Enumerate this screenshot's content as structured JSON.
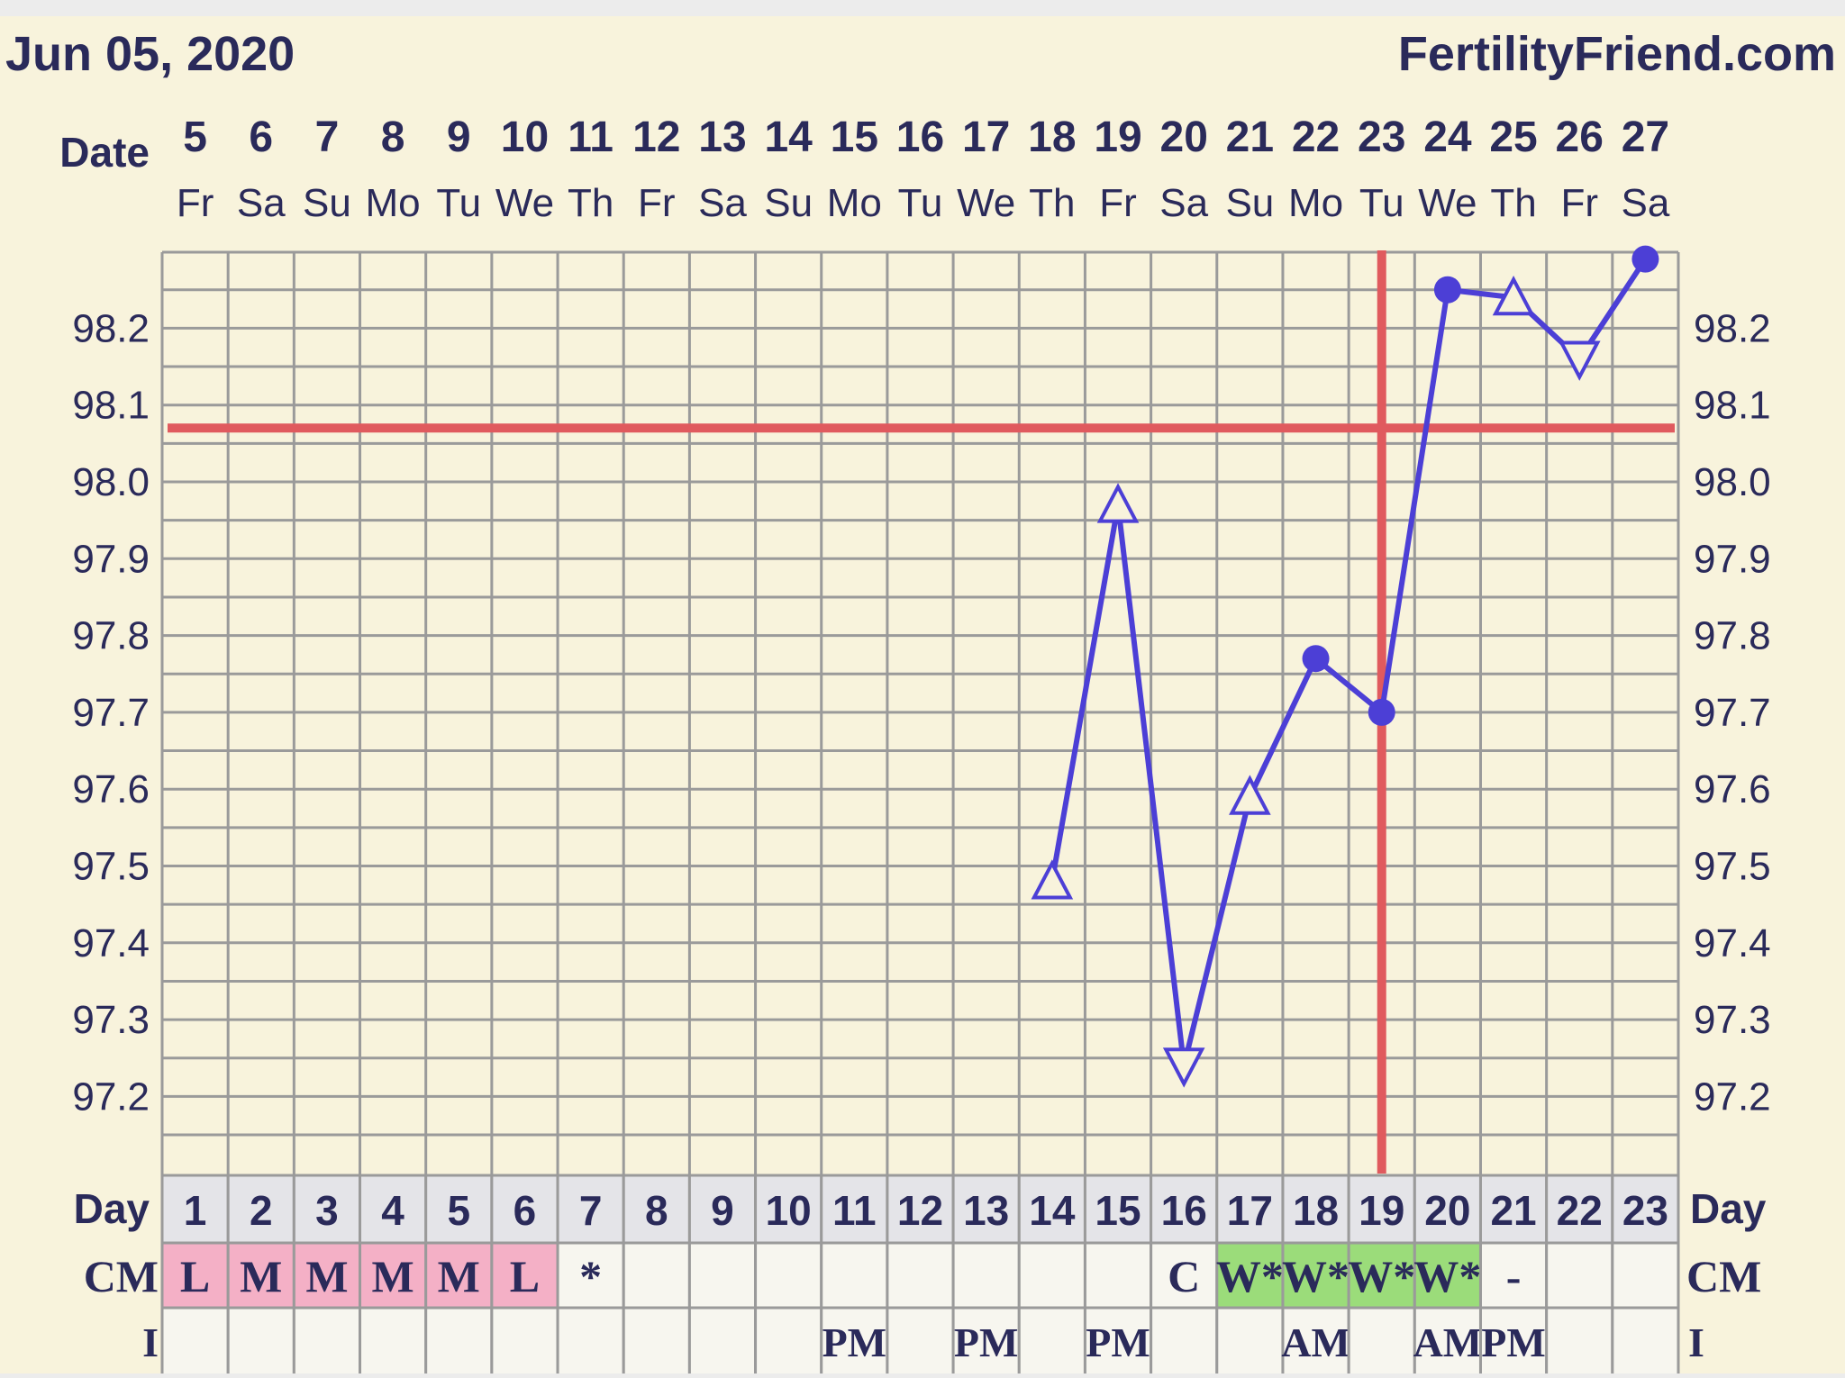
{
  "header": {
    "date": "Jun 05, 2020",
    "site": "FertilityFriend.com"
  },
  "labels": {
    "date_row": "Date",
    "day_row": "Day",
    "cm_row": "CM",
    "i_row": "I"
  },
  "colors": {
    "background": "#f8f3dc",
    "grid": "#9a9a9a",
    "line": "#4c3fd6",
    "coverline": "#e05a5e",
    "menstruation": "#f4b0c6",
    "fertile_cm": "#9bdc7a",
    "day_row_bg": "#e4e4e8",
    "cell_bg": "#f7f6ef"
  },
  "chart_data": {
    "type": "line",
    "title": "",
    "xlabel": "",
    "ylabel": "",
    "ylim": [
      97.1,
      98.3
    ],
    "yticks": [
      "98.2",
      "98.1",
      "98.0",
      "97.9",
      "97.8",
      "97.7",
      "97.6",
      "97.5",
      "97.4",
      "97.3",
      "97.2"
    ],
    "dates": [
      "5",
      "6",
      "7",
      "8",
      "9",
      "10",
      "11",
      "12",
      "13",
      "14",
      "15",
      "16",
      "17",
      "18",
      "19",
      "20",
      "21",
      "22",
      "23",
      "24",
      "25",
      "26",
      "27"
    ],
    "weekdays": [
      "Fr",
      "Sa",
      "Su",
      "Mo",
      "Tu",
      "We",
      "Th",
      "Fr",
      "Sa",
      "Su",
      "Mo",
      "Tu",
      "We",
      "Th",
      "Fr",
      "Sa",
      "Su",
      "Mo",
      "Tu",
      "We",
      "Th",
      "Fr",
      "Sa"
    ],
    "cycle_days": [
      "1",
      "2",
      "3",
      "4",
      "5",
      "6",
      "7",
      "8",
      "9",
      "10",
      "11",
      "12",
      "13",
      "14",
      "15",
      "16",
      "17",
      "18",
      "19",
      "20",
      "21",
      "22",
      "23"
    ],
    "temperatures": [
      {
        "day": 14,
        "temp": 97.48,
        "marker": "triangle-up"
      },
      {
        "day": 15,
        "temp": 97.97,
        "marker": "triangle-up"
      },
      {
        "day": 16,
        "temp": 97.24,
        "marker": "triangle-down"
      },
      {
        "day": 17,
        "temp": 97.59,
        "marker": "triangle-up"
      },
      {
        "day": 18,
        "temp": 97.77,
        "marker": "circle"
      },
      {
        "day": 19,
        "temp": 97.7,
        "marker": "circle"
      },
      {
        "day": 20,
        "temp": 98.25,
        "marker": "circle"
      },
      {
        "day": 21,
        "temp": 98.24,
        "marker": "triangle-up"
      },
      {
        "day": 22,
        "temp": 98.16,
        "marker": "triangle-down"
      },
      {
        "day": 23,
        "temp": 98.29,
        "marker": "circle"
      }
    ],
    "coverline": 98.07,
    "ovulation_day": 19,
    "cervical_mucus": [
      "L",
      "M",
      "M",
      "M",
      "M",
      "L",
      "*",
      "",
      "",
      "",
      "",
      "",
      "",
      "",
      "",
      "C",
      "W*",
      "W*",
      "W*",
      "W*",
      "-",
      "",
      ""
    ],
    "cm_highlight": [
      "pink",
      "pink",
      "pink",
      "pink",
      "pink",
      "pink",
      "",
      "",
      "",
      "",
      "",
      "",
      "",
      "",
      "",
      "",
      "green",
      "green",
      "green",
      "green",
      "",
      "",
      ""
    ],
    "intercourse": [
      "",
      "",
      "",
      "",
      "",
      "",
      "",
      "",
      "",
      "",
      "PM",
      "",
      "PM",
      "",
      "PM",
      "",
      "",
      "AM",
      "",
      "AM",
      "PM",
      "",
      ""
    ],
    "grid": true
  }
}
